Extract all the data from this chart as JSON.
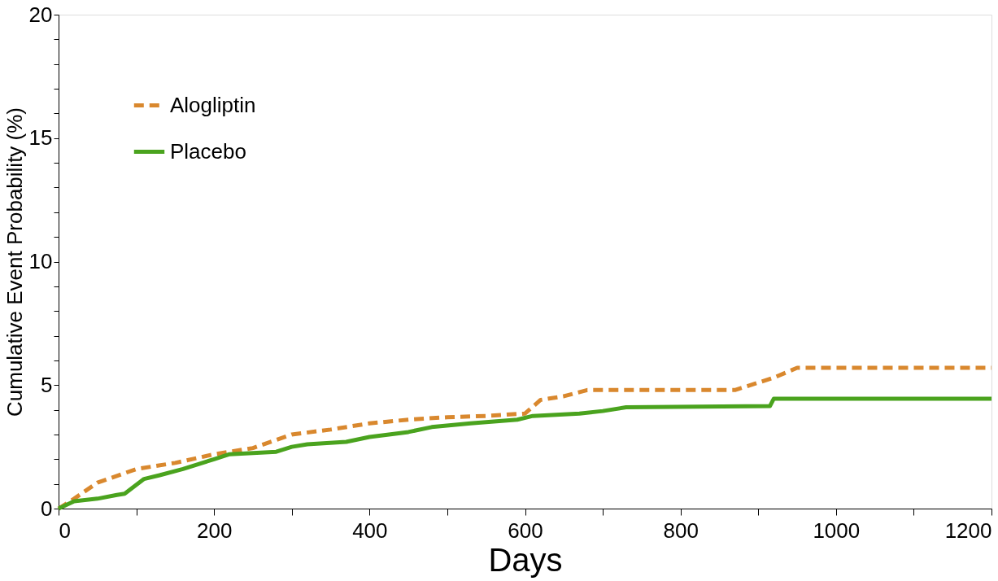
{
  "chart_data": {
    "type": "line",
    "xlabel": "Days",
    "ylabel": "Cumulative Event Probability (%)",
    "xlim": [
      0,
      1200
    ],
    "ylim": [
      0,
      20
    ],
    "xticks": [
      0,
      {
        "value": 100,
        "label": null
      },
      200,
      {
        "value": 300,
        "label": null
      },
      400,
      {
        "value": 500,
        "label": null
      },
      600,
      {
        "value": 700,
        "label": null
      },
      800,
      {
        "value": 900,
        "label": null
      },
      1000,
      {
        "value": 1100,
        "label": null
      },
      1200
    ],
    "yticks": [
      0,
      {
        "value": 1,
        "label": null
      },
      {
        "value": 2,
        "label": null
      },
      {
        "value": 3,
        "label": null
      },
      {
        "value": 4,
        "label": null
      },
      5,
      {
        "value": 6,
        "label": null
      },
      {
        "value": 7,
        "label": null
      },
      {
        "value": 8,
        "label": null
      },
      {
        "value": 9,
        "label": null
      },
      10,
      {
        "value": 11,
        "label": null
      },
      {
        "value": 12,
        "label": null
      },
      {
        "value": 13,
        "label": null
      },
      {
        "value": 14,
        "label": null
      },
      15,
      {
        "value": 16,
        "label": null
      },
      {
        "value": 17,
        "label": null
      },
      {
        "value": 18,
        "label": null
      },
      {
        "value": 19,
        "label": null
      },
      20
    ],
    "grid": false,
    "legend": "top left",
    "series": [
      {
        "name": "Alogliptin",
        "color": "#d9882e",
        "line_style": "dashed",
        "x": [
          0,
          20,
          50,
          100,
          150,
          200,
          250,
          300,
          350,
          400,
          450,
          500,
          550,
          600,
          620,
          650,
          680,
          870,
          900,
          920,
          950,
          1200
        ],
        "values": [
          0,
          0.4,
          1.05,
          1.6,
          1.85,
          2.2,
          2.45,
          3.0,
          3.2,
          3.45,
          3.6,
          3.7,
          3.75,
          3.85,
          4.4,
          4.55,
          4.8,
          4.8,
          5.1,
          5.3,
          5.7,
          5.7
        ]
      },
      {
        "name": "Placebo",
        "color": "#4aa31e",
        "line_style": "solid",
        "x": [
          0,
          20,
          50,
          75,
          85,
          110,
          130,
          160,
          180,
          200,
          220,
          280,
          300,
          320,
          370,
          400,
          450,
          480,
          530,
          590,
          610,
          670,
          700,
          730,
          915,
          920,
          1200
        ],
        "values": [
          0,
          0.3,
          0.4,
          0.55,
          0.6,
          1.2,
          1.35,
          1.6,
          1.8,
          2.0,
          2.2,
          2.3,
          2.5,
          2.6,
          2.7,
          2.9,
          3.1,
          3.3,
          3.45,
          3.6,
          3.75,
          3.85,
          3.95,
          4.1,
          4.15,
          4.45,
          4.45
        ]
      }
    ]
  }
}
